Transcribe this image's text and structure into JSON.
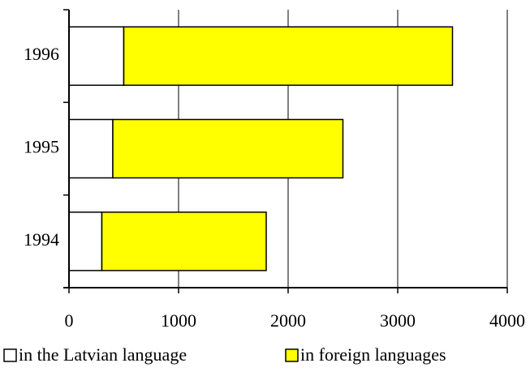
{
  "chart_data": {
    "type": "stacked_barh",
    "categories": [
      "1994",
      "1995",
      "1996"
    ],
    "series": [
      {
        "name": "in the Latvian language",
        "color": "#ffffff",
        "values": [
          300,
          400,
          500
        ]
      },
      {
        "name": "in foreign languages",
        "color": "#ffff00",
        "values": [
          1500,
          2100,
          3000
        ]
      }
    ],
    "xlim": [
      0,
      4000
    ],
    "xticks": [
      0,
      1000,
      2000,
      3000,
      4000
    ],
    "grid": true,
    "legend": "bottom"
  }
}
